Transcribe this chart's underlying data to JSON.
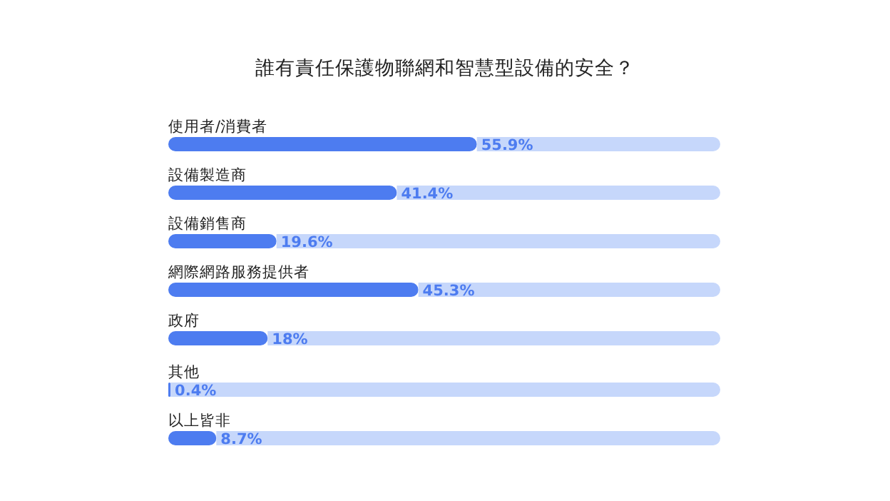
{
  "chart_data": {
    "type": "bar",
    "orientation": "horizontal",
    "stacked": true,
    "title": "誰有責任保護物聯網和智慧型設備的安全？",
    "categories": [
      "使用者/消費者",
      "設備製造商",
      "設備銷售商",
      "網際網路服務提供者",
      "政府",
      "其他",
      "以上皆非"
    ],
    "series": [
      {
        "color": "#4d7cf0",
        "values": [
          55.9,
          41.4,
          19.6,
          45.3,
          18,
          0.4,
          8.7
        ],
        "value_labels": [
          "55.9%",
          "41.4%",
          "19.6%",
          "45.3%",
          "18%",
          "0.4%",
          "8.7%"
        ]
      },
      {
        "color": "#c6d7fb",
        "values": [
          44.1,
          58.6,
          80.4,
          54.7,
          82,
          99.6,
          91.3
        ]
      }
    ],
    "xlim": [
      0,
      100
    ]
  }
}
